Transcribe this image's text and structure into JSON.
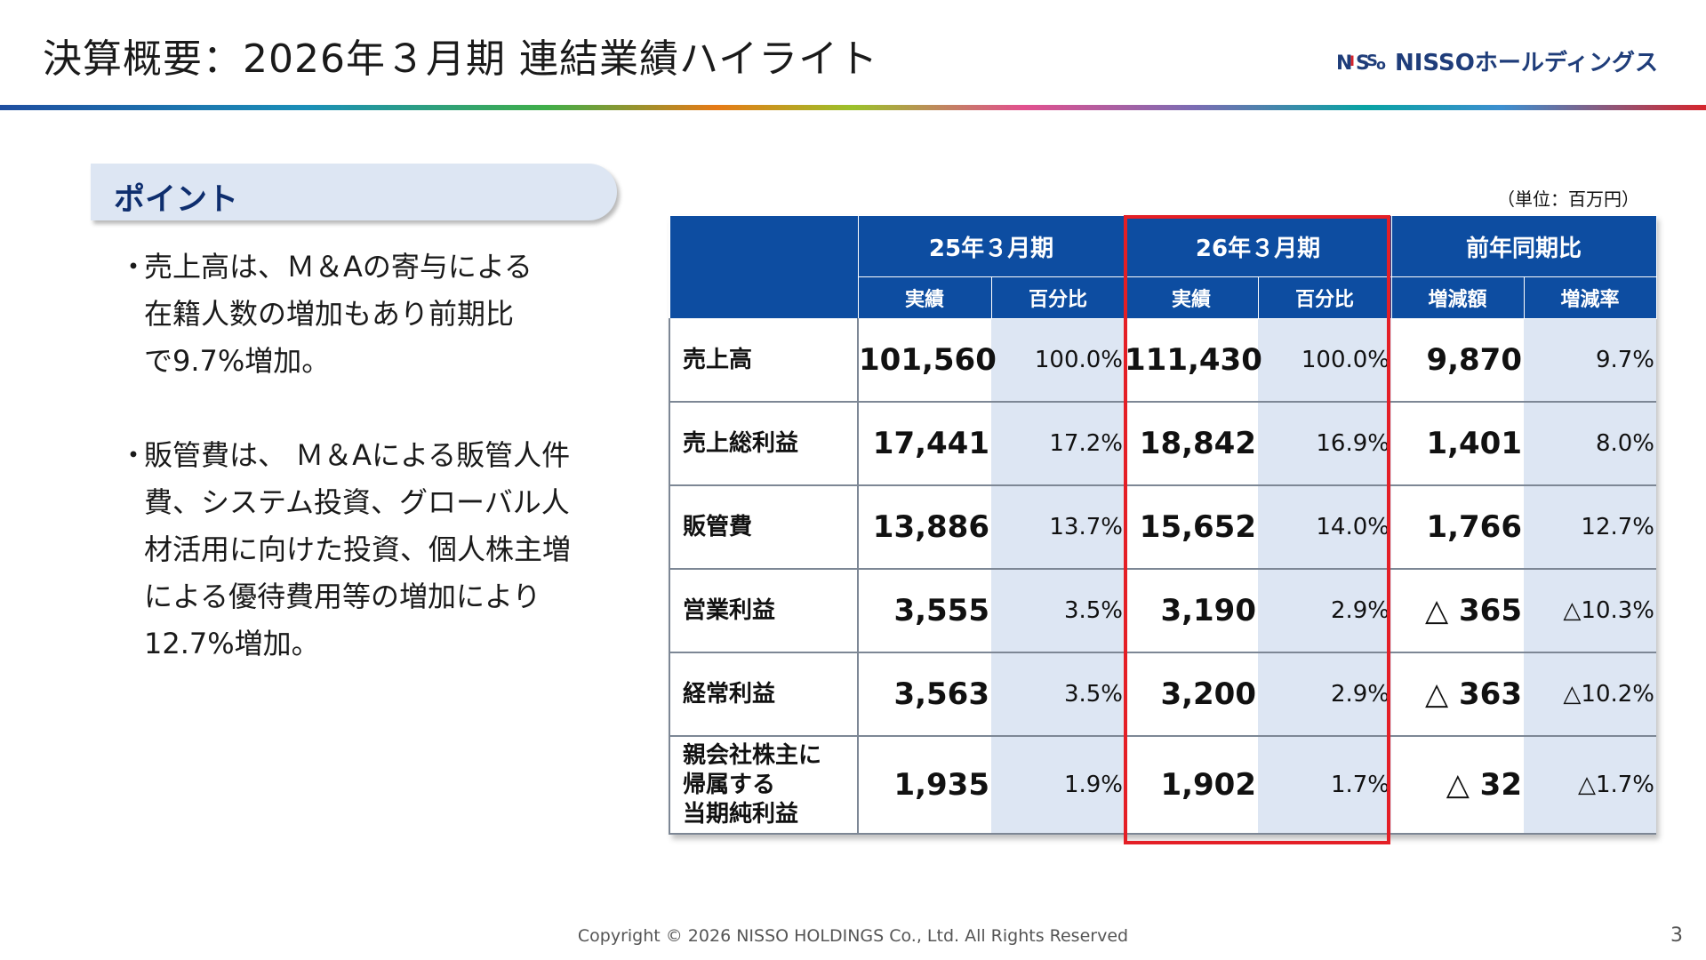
{
  "header": {
    "title": "決算概要：2026年３月期 連結業績ハイライト",
    "logo_text": "NISSOホールディングス",
    "logo_mark_text": "NISSO"
  },
  "point_box": {
    "label": "ポイント"
  },
  "bullets": [
    {
      "dot": "・",
      "lines": [
        "売上高は、Ｍ＆Aの寄与による",
        "在籍人数の増加もあり前期比",
        "で9.7%増加。"
      ]
    },
    {
      "dot": "・",
      "lines": [
        "販管費は、 Ｍ＆Aによる販管人件",
        "費、システム投資、グローバル人",
        "材活用に向けた投資、個人株主増",
        "による優待費用等の増加により",
        "12.7%増加。"
      ]
    }
  ],
  "table": {
    "unit": "（単位：百万円）",
    "header_groups": [
      "25年３月期",
      "26年３月期",
      "前年同期比"
    ],
    "sub_headers": [
      "実績",
      "百分比",
      "実績",
      "百分比",
      "増減額",
      "増減率"
    ],
    "rows": [
      {
        "label": [
          "売上高"
        ],
        "c1": "101,560",
        "p1": "100.0%",
        "c2": "111,430",
        "p2": "100.0%",
        "diff": "9,870",
        "rate": "9.7%"
      },
      {
        "label": [
          "売上総利益"
        ],
        "c1": "17,441",
        "p1": "17.2%",
        "c2": "18,842",
        "p2": "16.9%",
        "diff": "1,401",
        "rate": "8.0%"
      },
      {
        "label": [
          "販管費"
        ],
        "c1": "13,886",
        "p1": "13.7%",
        "c2": "15,652",
        "p2": "14.0%",
        "diff": "1,766",
        "rate": "12.7%"
      },
      {
        "label": [
          "営業利益"
        ],
        "c1": "3,555",
        "p1": "3.5%",
        "c2": "3,190",
        "p2": "2.9%",
        "diff": "△ 365",
        "rate": "△10.3%"
      },
      {
        "label": [
          "経常利益"
        ],
        "c1": "3,563",
        "p1": "3.5%",
        "c2": "3,200",
        "p2": "2.9%",
        "diff": "△ 363",
        "rate": "△10.2%"
      },
      {
        "label": [
          "親会社株主に",
          "帰属する",
          "当期純利益"
        ],
        "c1": "1,935",
        "p1": "1.9%",
        "c2": "1,902",
        "p2": "1.7%",
        "diff": "△ 32",
        "rate": "△1.7%"
      }
    ]
  },
  "colors": {
    "table_header_bg": "#0d4da1",
    "pct_cell_bg": "#dde6f3",
    "highlight_border": "#e41f26",
    "point_box_bg": "#dde6f3"
  },
  "footer": {
    "copyright": "Copyright © 2026 NISSO HOLDINGS Co., Ltd. All Rights Reserved",
    "page_number": "3"
  }
}
